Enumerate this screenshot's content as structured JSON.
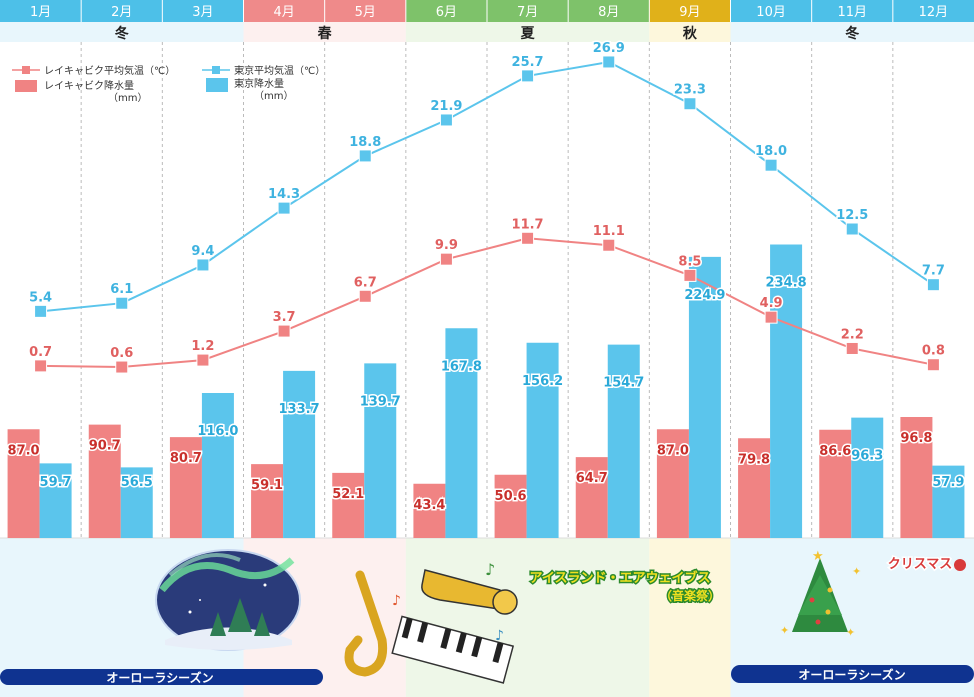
{
  "months": [
    "1月",
    "2月",
    "3月",
    "4月",
    "5月",
    "6月",
    "7月",
    "8月",
    "9月",
    "10月",
    "11月",
    "12月"
  ],
  "seasons": [
    {
      "label": "冬",
      "start": 0,
      "end": 3,
      "color": "#e8f6fc",
      "head": "#4dc0e8"
    },
    {
      "label": "春",
      "start": 3,
      "end": 5,
      "color": "#fdf0ef",
      "head": "#ef8a8a"
    },
    {
      "label": "夏",
      "start": 5,
      "end": 8,
      "color": "#eef7e8",
      "head": "#7ec26a"
    },
    {
      "label": "秋",
      "start": 8,
      "end": 9,
      "color": "#fdf7dc",
      "head": "#e0b11a"
    },
    {
      "label": "冬",
      "start": 9,
      "end": 12,
      "color": "#e8f6fc",
      "head": "#4dc0e8"
    }
  ],
  "legend": {
    "reykjavik_temp": "レイキャビク平均気温（℃）",
    "reykjavik_rain": "レイキャビク降水量",
    "tokyo_temp": "東京平均気温（℃）",
    "tokyo_rain": "東京降水量",
    "unit_mm": "（mm）"
  },
  "chart_data": {
    "type": "bar",
    "categories": [
      "1月",
      "2月",
      "3月",
      "4月",
      "5月",
      "6月",
      "7月",
      "8月",
      "9月",
      "10月",
      "11月",
      "12月"
    ],
    "series": [
      {
        "name": "レイキャビク降水量（mm）",
        "type": "bar",
        "color": "#f08383",
        "values": [
          87.0,
          90.7,
          80.7,
          59.1,
          52.1,
          43.4,
          50.6,
          64.7,
          87.0,
          79.8,
          86.6,
          96.8
        ]
      },
      {
        "name": "東京降水量（mm）",
        "type": "bar",
        "color": "#5bc5ec",
        "values": [
          59.7,
          56.5,
          116.0,
          133.7,
          139.7,
          167.8,
          156.2,
          154.7,
          224.9,
          234.8,
          96.3,
          57.9
        ]
      },
      {
        "name": "レイキャビク平均気温（℃）",
        "type": "line",
        "color": "#f08383",
        "values": [
          0.7,
          0.6,
          1.2,
          3.7,
          6.7,
          9.9,
          11.7,
          11.1,
          8.5,
          4.9,
          2.2,
          0.8
        ]
      },
      {
        "name": "東京平均気温（℃）",
        "type": "line",
        "color": "#5bc5ec",
        "values": [
          5.4,
          6.1,
          9.4,
          14.3,
          18.8,
          21.9,
          25.7,
          26.9,
          23.3,
          18.0,
          12.5,
          7.7
        ]
      }
    ]
  },
  "events": {
    "aurora_left": "オーローラシーズン",
    "aurora_right": "オーローラシーズン",
    "airwaves_title": "アイスランド・エアウェイブス",
    "airwaves_sub": "（音楽祭）",
    "christmas": "クリスマス"
  }
}
